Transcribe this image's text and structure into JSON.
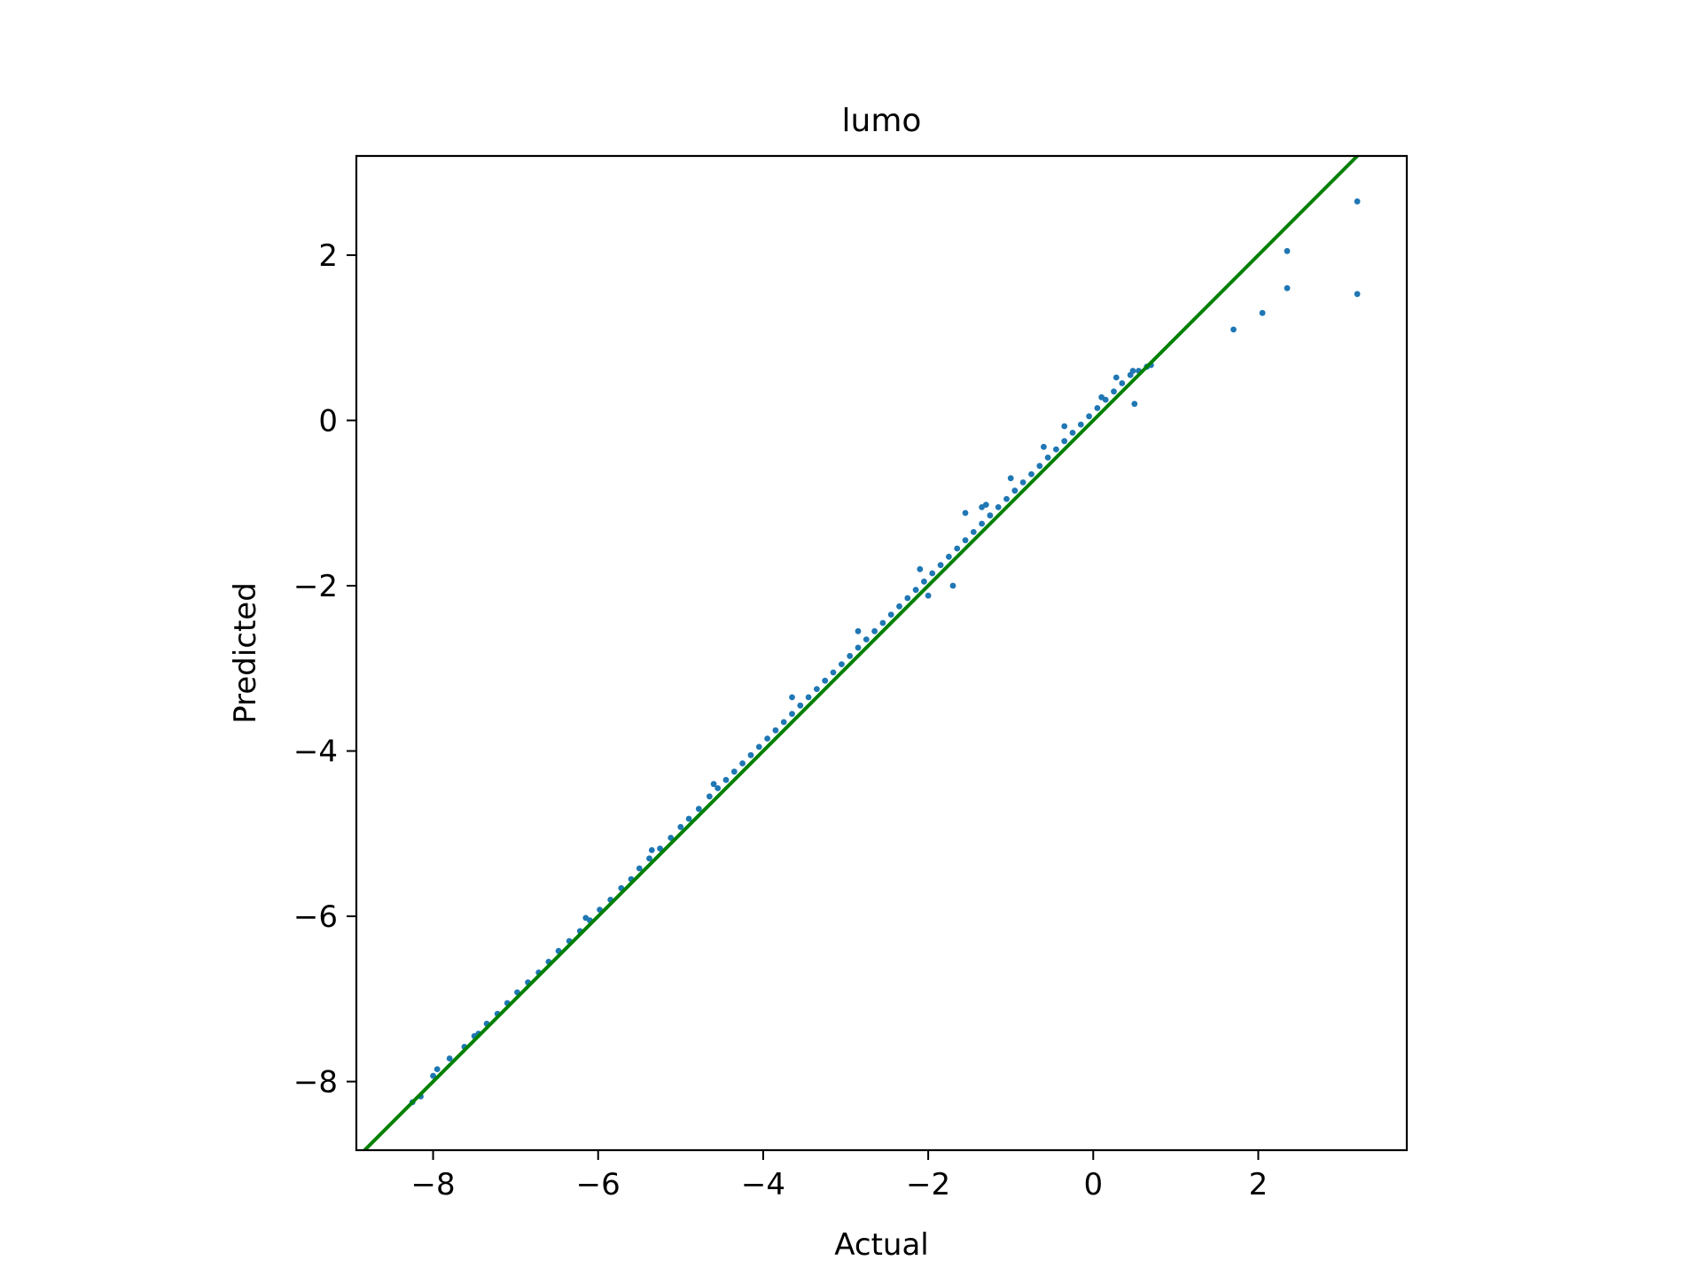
{
  "chart_data": {
    "type": "scatter",
    "title": "lumo",
    "xlabel": "Actual",
    "ylabel": "Predicted",
    "xlim": [
      -8.93,
      3.8
    ],
    "ylim": [
      -8.83,
      3.2
    ],
    "xticks": [
      -8,
      -6,
      -4,
      -2,
      0,
      2
    ],
    "yticks": [
      -8,
      -6,
      -4,
      -2,
      0,
      2
    ],
    "xtick_labels": [
      "−8",
      "−6",
      "−4",
      "−2",
      "0",
      "2"
    ],
    "ytick_labels": [
      "−8",
      "−6",
      "−4",
      "−2",
      "0",
      "2"
    ],
    "grid": false,
    "series": [
      {
        "kind": "scatter",
        "color": "#1f77b4",
        "points": [
          [
            -8.25,
            -8.25
          ],
          [
            -8.15,
            -8.18
          ],
          [
            -8.0,
            -7.93
          ],
          [
            -7.95,
            -7.85
          ],
          [
            -7.8,
            -7.72
          ],
          [
            -7.62,
            -7.58
          ],
          [
            -7.45,
            -7.42
          ],
          [
            -7.35,
            -7.3
          ],
          [
            -7.22,
            -7.18
          ],
          [
            -7.1,
            -7.05
          ],
          [
            -6.98,
            -6.92
          ],
          [
            -6.85,
            -6.8
          ],
          [
            -6.72,
            -6.68
          ],
          [
            -6.6,
            -6.55
          ],
          [
            -6.48,
            -6.42
          ],
          [
            -6.35,
            -6.3
          ],
          [
            -6.22,
            -6.18
          ],
          [
            -6.1,
            -6.05
          ],
          [
            -5.98,
            -5.92
          ],
          [
            -5.85,
            -5.8
          ],
          [
            -5.72,
            -5.66
          ],
          [
            -5.6,
            -5.55
          ],
          [
            -5.5,
            -5.42
          ],
          [
            -5.38,
            -5.3
          ],
          [
            -5.25,
            -5.18
          ],
          [
            -5.12,
            -5.05
          ],
          [
            -5.0,
            -4.92
          ],
          [
            -4.9,
            -4.82
          ],
          [
            -4.78,
            -4.7
          ],
          [
            -4.65,
            -4.55
          ],
          [
            -4.55,
            -4.45
          ],
          [
            -4.45,
            -4.35
          ],
          [
            -4.35,
            -4.25
          ],
          [
            -4.25,
            -4.15
          ],
          [
            -4.15,
            -4.05
          ],
          [
            -4.05,
            -3.95
          ],
          [
            -3.95,
            -3.85
          ],
          [
            -3.85,
            -3.75
          ],
          [
            -3.75,
            -3.65
          ],
          [
            -3.65,
            -3.55
          ],
          [
            -3.55,
            -3.45
          ],
          [
            -3.45,
            -3.35
          ],
          [
            -3.35,
            -3.25
          ],
          [
            -3.25,
            -3.15
          ],
          [
            -3.15,
            -3.05
          ],
          [
            -3.05,
            -2.95
          ],
          [
            -2.95,
            -2.85
          ],
          [
            -2.85,
            -2.75
          ],
          [
            -2.75,
            -2.65
          ],
          [
            -2.65,
            -2.55
          ],
          [
            -2.55,
            -2.45
          ],
          [
            -2.45,
            -2.35
          ],
          [
            -2.35,
            -2.25
          ],
          [
            -2.25,
            -2.15
          ],
          [
            -2.15,
            -2.05
          ],
          [
            -2.05,
            -1.95
          ],
          [
            -1.95,
            -1.85
          ],
          [
            -1.85,
            -1.75
          ],
          [
            -1.75,
            -1.65
          ],
          [
            -1.65,
            -1.55
          ],
          [
            -1.55,
            -1.45
          ],
          [
            -1.45,
            -1.35
          ],
          [
            -1.35,
            -1.25
          ],
          [
            -1.25,
            -1.15
          ],
          [
            -1.15,
            -1.05
          ],
          [
            -1.05,
            -0.95
          ],
          [
            -0.95,
            -0.85
          ],
          [
            -0.85,
            -0.75
          ],
          [
            -0.75,
            -0.65
          ],
          [
            -0.65,
            -0.55
          ],
          [
            -0.55,
            -0.45
          ],
          [
            -0.45,
            -0.35
          ],
          [
            -0.35,
            -0.25
          ],
          [
            -0.25,
            -0.15
          ],
          [
            -0.15,
            -0.05
          ],
          [
            -0.05,
            0.05
          ],
          [
            0.05,
            0.15
          ],
          [
            0.15,
            0.25
          ],
          [
            0.25,
            0.35
          ],
          [
            0.35,
            0.45
          ],
          [
            0.45,
            0.55
          ],
          [
            0.55,
            0.6
          ],
          [
            0.65,
            0.65
          ],
          [
            0.7,
            0.67
          ],
          [
            -4.6,
            -4.4
          ],
          [
            -3.65,
            -3.35
          ],
          [
            -2.85,
            -2.55
          ],
          [
            -2.1,
            -1.8
          ],
          [
            -1.55,
            -1.12
          ],
          [
            -1.3,
            -1.02
          ],
          [
            -0.6,
            -0.32
          ],
          [
            0.1,
            0.28
          ],
          [
            -1.7,
            -2.0
          ],
          [
            -2.0,
            -2.12
          ],
          [
            -1.35,
            -1.05
          ],
          [
            -1.0,
            -0.7
          ],
          [
            -0.35,
            -0.07
          ],
          [
            0.28,
            0.52
          ],
          [
            0.48,
            0.6
          ],
          [
            -5.35,
            -5.2
          ],
          [
            -6.15,
            -6.02
          ],
          [
            -7.5,
            -7.45
          ],
          [
            1.7,
            1.1
          ],
          [
            2.05,
            1.3
          ],
          [
            2.35,
            1.6
          ],
          [
            2.35,
            2.05
          ],
          [
            3.2,
            1.53
          ],
          [
            3.2,
            2.65
          ],
          [
            0.5,
            0.2
          ]
        ]
      },
      {
        "kind": "line",
        "color": "#008000",
        "points": [
          [
            -8.93,
            -8.93
          ],
          [
            3.8,
            3.8
          ]
        ]
      }
    ]
  }
}
